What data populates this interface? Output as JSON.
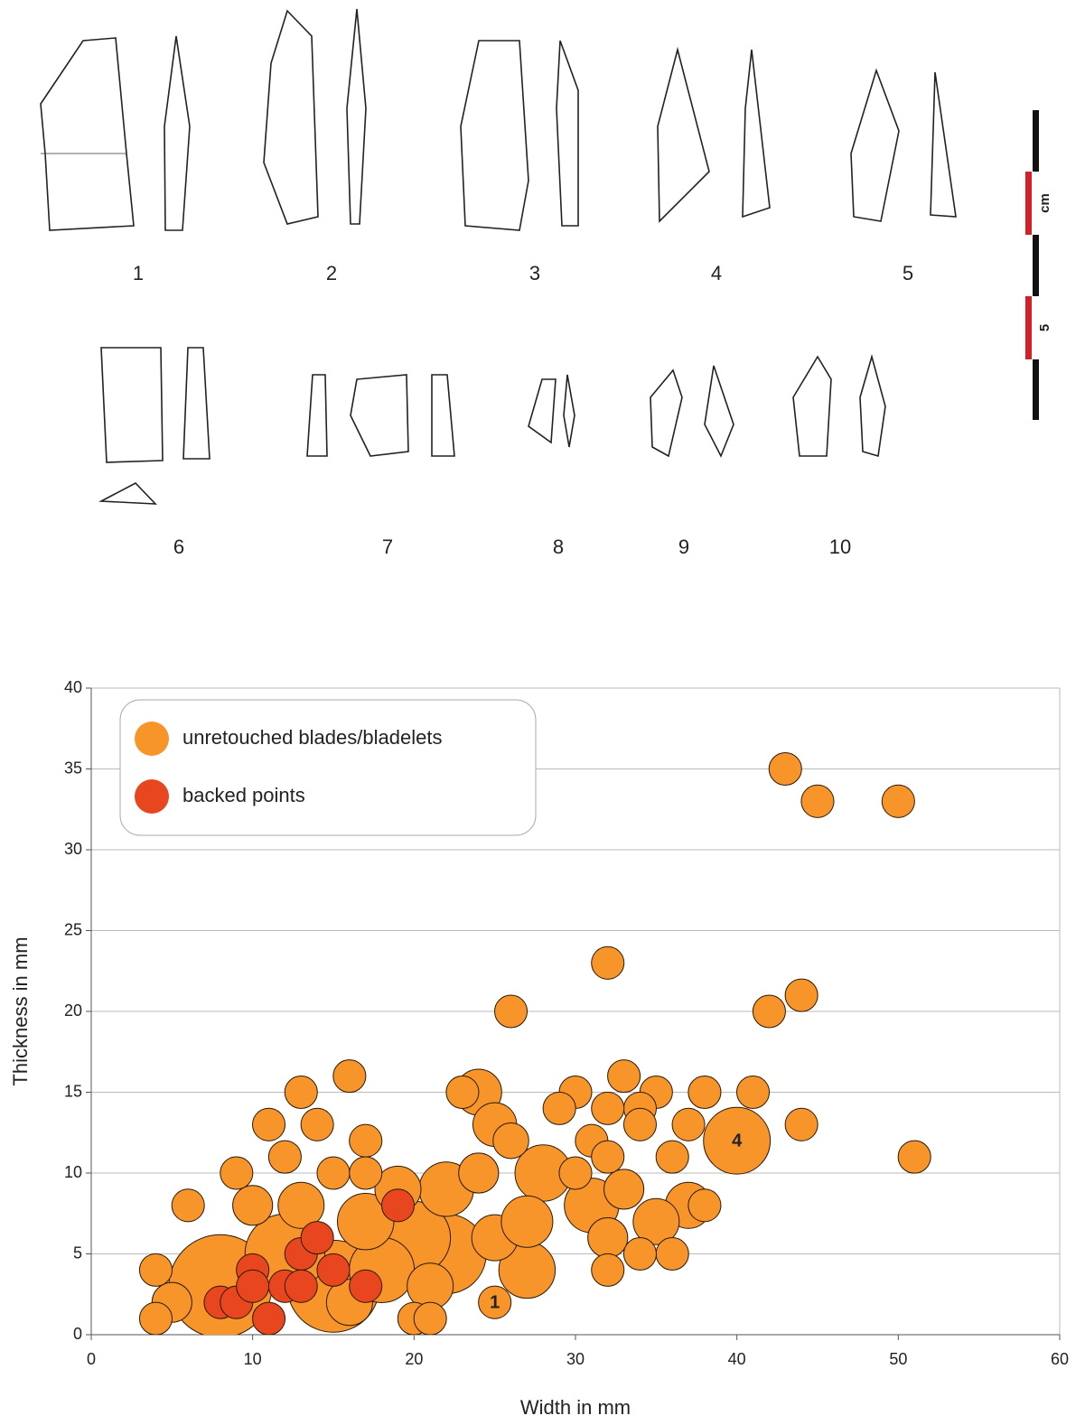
{
  "figure": {
    "labels": [
      "1",
      "2",
      "3",
      "4",
      "5",
      "6",
      "7",
      "8",
      "9",
      "10"
    ],
    "scale_labels": [
      "cm",
      "5"
    ]
  },
  "chart_data": {
    "type": "scatter",
    "xlabel": "Width in mm",
    "ylabel": "Thickness in mm",
    "xlim": [
      0,
      60
    ],
    "ylim": [
      0,
      40
    ],
    "xticks": [
      0,
      10,
      20,
      30,
      40,
      50,
      60
    ],
    "yticks": [
      0,
      5,
      10,
      15,
      20,
      25,
      30,
      35,
      40
    ],
    "grid": true,
    "legend": "upper left",
    "series": [
      {
        "name": "unretouched blades/bladelets",
        "color": "#f7952a",
        "x": [
          8,
          15,
          12,
          22,
          20,
          18,
          40,
          28,
          27,
          17,
          31,
          22,
          25,
          37,
          35,
          24,
          27,
          5,
          13,
          16,
          33,
          32,
          24,
          10,
          25,
          26,
          43,
          45,
          50,
          32,
          26,
          42,
          44,
          51,
          44,
          41,
          38,
          37,
          38,
          36,
          36,
          35,
          33,
          34,
          34,
          32,
          30,
          29,
          31,
          32,
          30,
          32,
          34,
          23,
          19,
          21,
          20,
          21,
          16,
          13,
          14,
          17,
          11,
          12,
          9,
          6,
          4,
          4,
          15,
          17,
          25
        ],
        "y": [
          3,
          3,
          5,
          5,
          6,
          4,
          12,
          10,
          4,
          7,
          8,
          9,
          6,
          8,
          7,
          15,
          7,
          2,
          8,
          2,
          9,
          6,
          10,
          8,
          13,
          12,
          35,
          33,
          33,
          23,
          20,
          20,
          21,
          11,
          13,
          15,
          15,
          13,
          8,
          5,
          11,
          15,
          16,
          14,
          13,
          14,
          15,
          14,
          12,
          11,
          10,
          4,
          5,
          15,
          9,
          3,
          1,
          1,
          16,
          15,
          13,
          12,
          13,
          11,
          10,
          8,
          4,
          1,
          10,
          10,
          2
        ],
        "sizes": [
          100,
          80,
          60,
          60,
          50,
          40,
          42,
          30,
          30,
          30,
          28,
          28,
          20,
          20,
          20,
          20,
          25,
          15,
          20,
          20,
          15,
          15,
          15,
          15,
          18,
          12,
          10,
          10,
          10,
          10,
          10,
          10,
          10,
          10,
          10,
          10,
          10,
          10,
          10,
          10,
          10,
          10,
          10,
          10,
          10,
          10,
          10,
          10,
          10,
          10,
          10,
          10,
          10,
          10,
          20,
          20,
          10,
          10,
          10,
          10,
          10,
          10,
          10,
          10,
          10,
          10,
          10,
          10,
          10,
          10,
          10
        ]
      },
      {
        "name": "backed points",
        "color": "#e8461e",
        "x": [
          8,
          9,
          10,
          10,
          11,
          12,
          13,
          13,
          14,
          15,
          17,
          19
        ],
        "y": [
          2,
          2,
          4,
          3,
          1,
          3,
          5,
          3,
          6,
          4,
          3,
          8
        ],
        "sizes": [
          10,
          10,
          10,
          10,
          10,
          10,
          10,
          10,
          10,
          10,
          10,
          10
        ]
      }
    ],
    "annotations": [
      {
        "text": "1",
        "x": 25,
        "y": 2
      },
      {
        "text": "4",
        "x": 40,
        "y": 12
      }
    ]
  }
}
